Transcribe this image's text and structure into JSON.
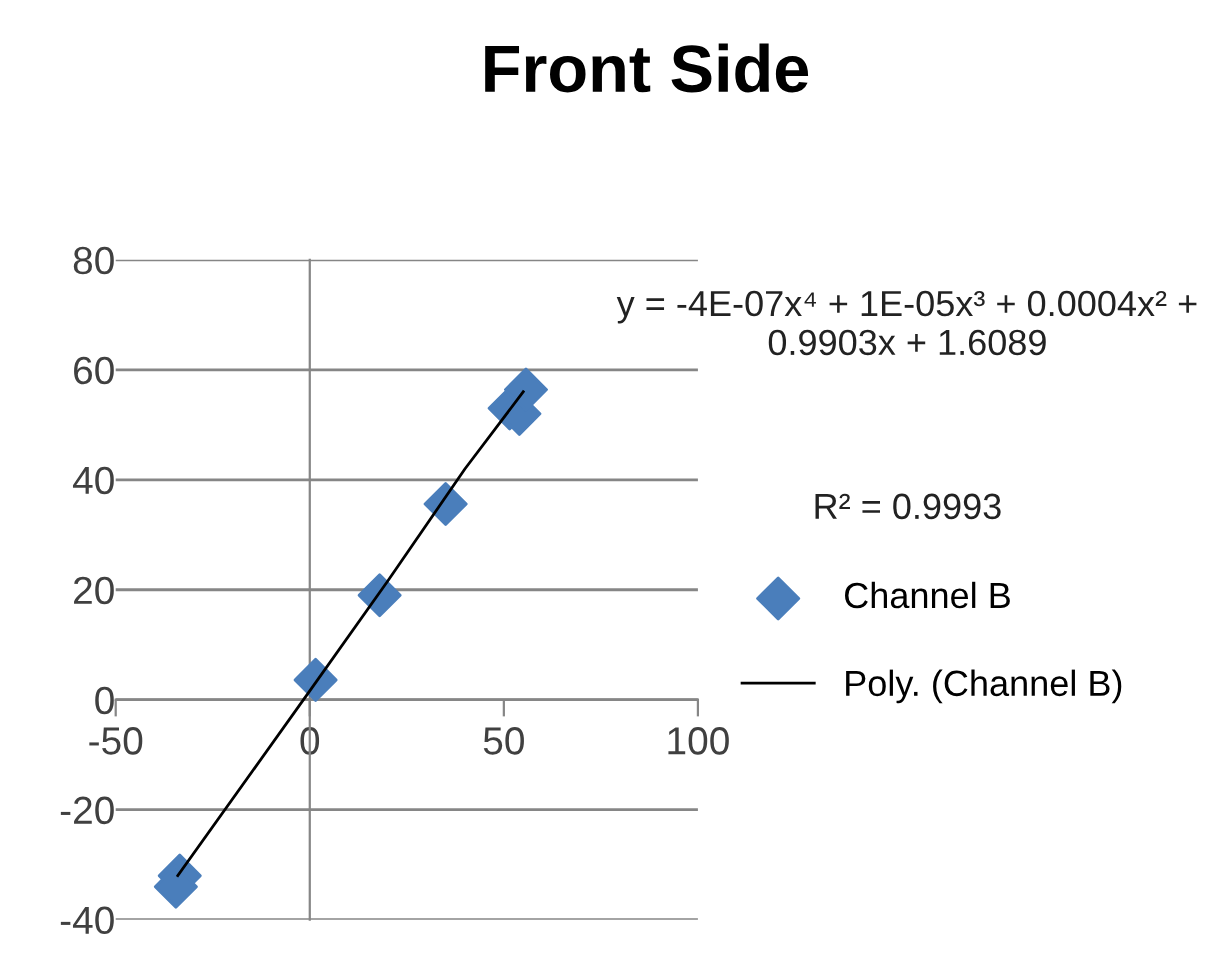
{
  "chart_data": {
    "type": "scatter",
    "title": "Front Side",
    "xlim": [
      -50,
      100
    ],
    "xticks": [
      -50,
      0,
      50,
      100
    ],
    "ylim": [
      -40,
      80
    ],
    "yticks": [
      -40,
      -20,
      0,
      20,
      40,
      60,
      80
    ],
    "grid": "y",
    "legend": "right",
    "marker": "diamond",
    "series": [
      {
        "name": "Channel B",
        "color": "#4a7ebb",
        "x": [
          -33.5,
          -34.5,
          1.5,
          18,
          35,
          51.5,
          54,
          55.7
        ],
        "values": [
          -32,
          -34,
          3.6,
          19,
          35.6,
          53,
          52,
          56.4
        ]
      },
      {
        "name": "Poly. (Channel B)",
        "type": "line",
        "color": "#000000",
        "marker": "none",
        "line_style": "solid",
        "x": [
          -34,
          0,
          20,
          40,
          55
        ],
        "values": [
          -32,
          1.6,
          21.5,
          42,
          56
        ]
      }
    ],
    "annotations": [
      "y = -4E-07x⁴ + 1E-05x³ + 0.0004x² + 0.9903x + 1.6089",
      "R² = 0.9993"
    ]
  }
}
